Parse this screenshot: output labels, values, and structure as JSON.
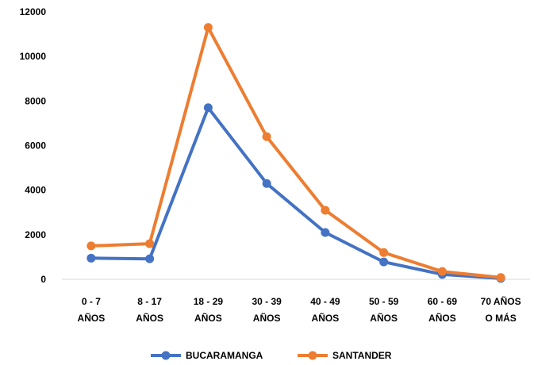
{
  "chart_data": {
    "type": "line",
    "categories": [
      [
        "0 - 7",
        "AÑOS"
      ],
      [
        "8 - 17",
        "AÑOS"
      ],
      [
        "18 - 29",
        "AÑOS"
      ],
      [
        "30 - 39",
        "AÑOS"
      ],
      [
        "40 - 49",
        "AÑOS"
      ],
      [
        "50 - 59",
        "AÑOS"
      ],
      [
        "60 - 69",
        "AÑOS"
      ],
      [
        "70 AÑOS",
        "O MÁS"
      ]
    ],
    "series": [
      {
        "name": "BUCARAMANGA",
        "color": "#4472C4",
        "values": [
          950,
          920,
          7700,
          4300,
          2100,
          780,
          220,
          40
        ]
      },
      {
        "name": "SANTANDER",
        "color": "#ED7D31",
        "values": [
          1500,
          1600,
          11300,
          6400,
          3100,
          1200,
          350,
          80
        ]
      }
    ],
    "ylim": [
      0,
      12000
    ],
    "yticks": [
      0,
      2000,
      4000,
      6000,
      8000,
      10000,
      12000
    ],
    "grid": false,
    "legend": "bottom"
  }
}
